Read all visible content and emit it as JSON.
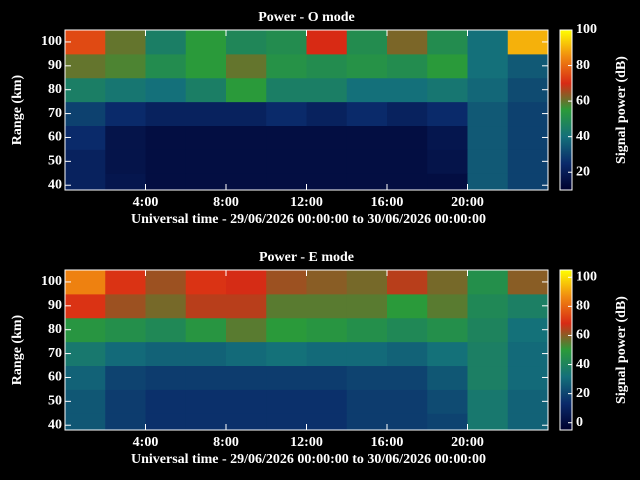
{
  "chart_data": [
    {
      "type": "heatmap",
      "title": "Power - O mode",
      "xlabel": "Universal time - 29/06/2026 00:00:00 to 30/06/2026 00:00:00",
      "ylabel": "Range (km)",
      "clabel": "Signal power (dB)",
      "x_bins": [
        0,
        2,
        4,
        6,
        8,
        10,
        12,
        14,
        16,
        18,
        20,
        22,
        24
      ],
      "y_bins": [
        38,
        45,
        55,
        65,
        75,
        85,
        95,
        105
      ],
      "z": [
        [
          22,
          18,
          15,
          15,
          15,
          15,
          15,
          15,
          15,
          15,
          35,
          30
        ],
        [
          22,
          17,
          15,
          15,
          15,
          15,
          15,
          15,
          15,
          17,
          35,
          30
        ],
        [
          25,
          17,
          15,
          15,
          15,
          15,
          15,
          15,
          15,
          18,
          35,
          30
        ],
        [
          30,
          25,
          22,
          22,
          22,
          25,
          22,
          25,
          22,
          25,
          35,
          30
        ],
        [
          45,
          42,
          40,
          45,
          55,
          45,
          45,
          40,
          40,
          42,
          38,
          32
        ],
        [
          60,
          58,
          50,
          55,
          60,
          52,
          50,
          52,
          50,
          55,
          40,
          35
        ],
        [
          75,
          60,
          45,
          55,
          48,
          50,
          70,
          50,
          62,
          50,
          40,
          90
        ]
      ],
      "xlim": [
        0,
        24
      ],
      "xticks": [
        {
          "value": 4,
          "label": "4:00"
        },
        {
          "value": 8,
          "label": "8:00"
        },
        {
          "value": 12,
          "label": "12:00"
        },
        {
          "value": 16,
          "label": "16:00"
        },
        {
          "value": 20,
          "label": "20:00"
        }
      ],
      "ylim": [
        38,
        105
      ],
      "yticks": [
        40,
        50,
        60,
        70,
        80,
        90,
        100
      ],
      "zlim": [
        10,
        100
      ],
      "cticks": [
        20,
        40,
        60,
        80,
        100
      ],
      "colormap": [
        "#00002e",
        "#0a2a6a",
        "#14707a",
        "#2a9a3a",
        "#d82a14",
        "#f08a10",
        "#ffff00"
      ]
    },
    {
      "type": "heatmap",
      "title": "Power - E mode",
      "xlabel": "Universal time - 29/06/2026 00:00:00 to 30/06/2026 00:00:00",
      "ylabel": "Range (km)",
      "clabel": "Signal power (dB)",
      "x_bins": [
        0,
        2,
        4,
        6,
        8,
        10,
        12,
        14,
        16,
        18,
        20,
        22,
        24
      ],
      "y_bins": [
        38,
        45,
        55,
        65,
        75,
        85,
        95,
        105
      ],
      "z": [
        [
          25,
          18,
          15,
          15,
          15,
          15,
          15,
          18,
          18,
          20,
          35,
          28
        ],
        [
          25,
          18,
          15,
          15,
          15,
          15,
          15,
          18,
          18,
          22,
          35,
          28
        ],
        [
          28,
          20,
          18,
          18,
          18,
          18,
          18,
          20,
          20,
          25,
          38,
          30
        ],
        [
          35,
          30,
          28,
          28,
          30,
          32,
          30,
          30,
          28,
          32,
          38,
          30
        ],
        [
          48,
          45,
          42,
          48,
          55,
          50,
          48,
          45,
          42,
          45,
          40,
          32
        ],
        [
          70,
          62,
          58,
          65,
          65,
          55,
          55,
          55,
          50,
          55,
          42,
          38
        ],
        [
          85,
          70,
          62,
          70,
          68,
          62,
          60,
          58,
          65,
          58,
          45,
          60
        ]
      ],
      "xlim": [
        0,
        24
      ],
      "xticks": [
        {
          "value": 4,
          "label": "4:00"
        },
        {
          "value": 8,
          "label": "8:00"
        },
        {
          "value": 12,
          "label": "12:00"
        },
        {
          "value": 16,
          "label": "16:00"
        },
        {
          "value": 20,
          "label": "20:00"
        }
      ],
      "ylim": [
        38,
        105
      ],
      "yticks": [
        40,
        50,
        60,
        70,
        80,
        90,
        100
      ],
      "zlim": [
        -5,
        105
      ],
      "cticks": [
        0,
        20,
        40,
        60,
        80,
        100
      ],
      "colormap": [
        "#00002e",
        "#0a2a6a",
        "#14707a",
        "#2a9a3a",
        "#d82a14",
        "#f08a10",
        "#ffff00"
      ]
    }
  ]
}
